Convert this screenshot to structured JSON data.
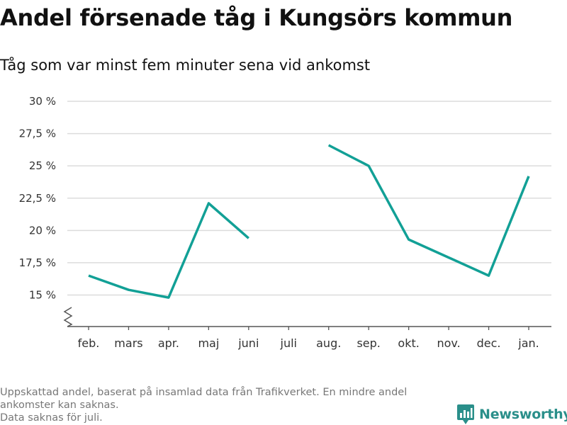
{
  "title": "Andel försenade tåg i Kungsörs kommun",
  "subtitle": "Tåg som var minst fem minuter sena vid ankomst",
  "footnote": {
    "line1": "Uppskattad andel, baserat på insamlad data från Trafikverket. En mindre andel ankomster kan saknas.",
    "line2": "Data saknas för juli."
  },
  "brand": {
    "name": "Newsworthy",
    "icon": "bar-chart-logo-icon"
  },
  "colors": {
    "line": "#12a096",
    "grid": "#dcdcdc",
    "axis": "#555555",
    "brand": "#2a8f8a"
  },
  "chart_data": {
    "type": "line",
    "categories": [
      "feb.",
      "mars",
      "apr.",
      "maj",
      "juni",
      "juli",
      "aug.",
      "sep.",
      "okt.",
      "nov.",
      "dec.",
      "jan."
    ],
    "series": [
      {
        "values": [
          16.5,
          15.4,
          14.8,
          22.1,
          19.4,
          null,
          26.6,
          25.0,
          19.3,
          17.9,
          16.5,
          24.2
        ]
      }
    ],
    "yticks": [
      15,
      17.5,
      20,
      22.5,
      25,
      27.5,
      30
    ],
    "ytick_labels": [
      "15 %",
      "17,5 %",
      "20 %",
      "22,5 %",
      "25 %",
      "27,5 %",
      "30 %"
    ],
    "ylim": [
      13,
      30
    ],
    "y_axis_break": true,
    "grid": true,
    "legend": "none"
  }
}
